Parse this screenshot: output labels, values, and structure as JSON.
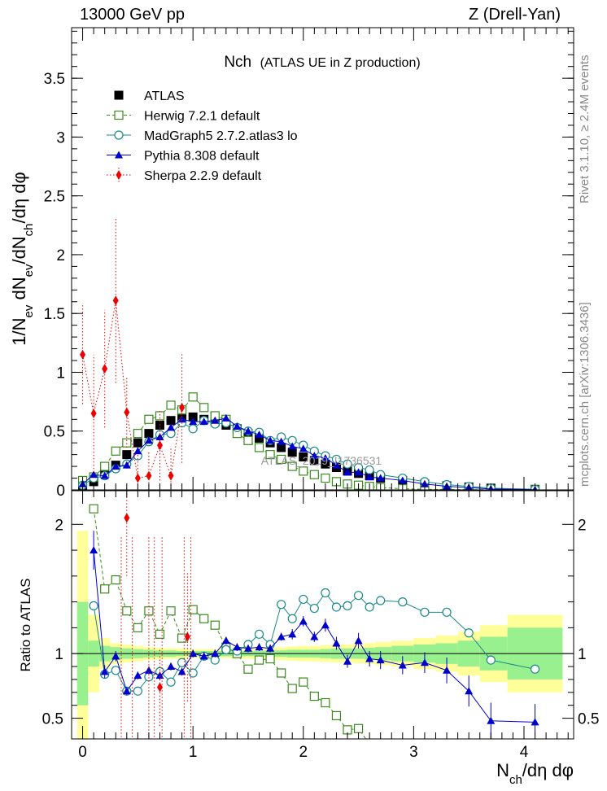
{
  "header": {
    "left": "13000 GeV pp",
    "right": "Z (Drell-Yan)"
  },
  "side_text": {
    "rivet": "Rivet 3.1.10, ≥ 2.4M events",
    "mcplots": "mcplots.cern.ch [arXiv:1306.3436]"
  },
  "watermark": "ATLAS_2019_I1736531",
  "chart_data": [
    {
      "type": "scatter",
      "title": "Nch",
      "subtitle": "(ATLAS UE in Z production)",
      "ylabel": "1/N_ev dN_ev/dN_ch/dη dφ",
      "xlabel": "",
      "xlim": [
        -0.1,
        4.45
      ],
      "ylim": [
        0,
        3.93
      ],
      "xticks": [
        0,
        1,
        2,
        3,
        4
      ],
      "yticks": [
        0.5,
        1,
        1.5,
        2,
        2.5,
        3,
        3.5
      ],
      "ytick_labels": [
        "0.5",
        "1",
        "1.5",
        "2",
        "2.5",
        "3",
        "3.5"
      ],
      "legend_position": "top-left",
      "series": [
        {
          "name": "ATLAS",
          "color": "#000000",
          "marker": "filled-square",
          "x": [
            0,
            0.1,
            0.2,
            0.3,
            0.4,
            0.5,
            0.6,
            0.7,
            0.8,
            0.9,
            1.0,
            1.1,
            1.2,
            1.3,
            1.4,
            1.5,
            1.6,
            1.7,
            1.8,
            1.9,
            2.0,
            2.1,
            2.2,
            2.3,
            2.4,
            2.5,
            2.6,
            2.7,
            2.9,
            3.1,
            3.3,
            3.5,
            3.7,
            4.1
          ],
          "y": [
            0.03,
            0.07,
            0.14,
            0.21,
            0.3,
            0.4,
            0.48,
            0.55,
            0.59,
            0.61,
            0.62,
            0.6,
            0.58,
            0.55,
            0.52,
            0.48,
            0.44,
            0.4,
            0.36,
            0.32,
            0.28,
            0.25,
            0.22,
            0.19,
            0.16,
            0.14,
            0.12,
            0.1,
            0.08,
            0.05,
            0.035,
            0.025,
            0.015,
            0.005
          ]
        },
        {
          "name": "Herwig 7.2.1 default",
          "color": "#3a8a1e",
          "marker": "open-square",
          "line": "dashed",
          "x": [
            0,
            0.1,
            0.2,
            0.3,
            0.4,
            0.5,
            0.6,
            0.7,
            0.8,
            0.9,
            1.0,
            1.1,
            1.2,
            1.3,
            1.4,
            1.5,
            1.6,
            1.7,
            1.8,
            1.9,
            2.0,
            2.1,
            2.2,
            2.3,
            2.4,
            2.5,
            2.6,
            2.7,
            2.9,
            3.1,
            3.3,
            3.5,
            3.7,
            4.1
          ],
          "y": [
            0.08,
            0.11,
            0.2,
            0.33,
            0.4,
            0.48,
            0.6,
            0.63,
            0.72,
            0.68,
            0.79,
            0.7,
            0.63,
            0.6,
            0.48,
            0.42,
            0.36,
            0.3,
            0.26,
            0.2,
            0.16,
            0.13,
            0.1,
            0.07,
            0.05,
            0.04,
            0.03,
            0.02,
            0.01,
            0.005,
            0.003,
            0.002,
            0.001,
            0.0005
          ]
        },
        {
          "name": "MadGraph5 2.7.2.atlas3 lo",
          "color": "#1a8a8a",
          "marker": "open-circle",
          "line": "solid",
          "x": [
            0,
            0.1,
            0.2,
            0.3,
            0.4,
            0.5,
            0.6,
            0.7,
            0.8,
            0.9,
            1.0,
            1.1,
            1.2,
            1.3,
            1.4,
            1.5,
            1.6,
            1.7,
            1.8,
            1.9,
            2.0,
            2.1,
            2.2,
            2.3,
            2.4,
            2.5,
            2.6,
            2.7,
            2.9,
            3.1,
            3.3,
            3.5,
            3.7,
            4.1
          ],
          "y": [
            0.04,
            0.1,
            0.12,
            0.18,
            0.22,
            0.29,
            0.41,
            0.47,
            0.48,
            0.57,
            0.52,
            0.59,
            0.56,
            0.57,
            0.53,
            0.5,
            0.49,
            0.42,
            0.45,
            0.42,
            0.38,
            0.33,
            0.29,
            0.26,
            0.22,
            0.19,
            0.17,
            0.13,
            0.1,
            0.07,
            0.045,
            0.03,
            0.015,
            0.005
          ]
        },
        {
          "name": "Pythia 8.308 default",
          "color": "#0000cc",
          "marker": "filled-triangle",
          "line": "solid",
          "x": [
            0,
            0.1,
            0.2,
            0.3,
            0.4,
            0.5,
            0.6,
            0.7,
            0.8,
            0.9,
            1.0,
            1.1,
            1.2,
            1.3,
            1.4,
            1.5,
            1.6,
            1.7,
            1.8,
            1.9,
            2.0,
            2.1,
            2.2,
            2.3,
            2.4,
            2.5,
            2.6,
            2.7,
            2.9,
            3.1,
            3.3,
            3.5,
            3.7,
            4.1
          ],
          "y": [
            0.05,
            0.13,
            0.12,
            0.2,
            0.21,
            0.33,
            0.42,
            0.45,
            0.53,
            0.6,
            0.58,
            0.58,
            0.59,
            0.61,
            0.54,
            0.5,
            0.47,
            0.42,
            0.41,
            0.37,
            0.35,
            0.29,
            0.27,
            0.21,
            0.15,
            0.15,
            0.11,
            0.1,
            0.08,
            0.05,
            0.03,
            0.02,
            0.008,
            0.002
          ]
        },
        {
          "name": "Sherpa 2.2.9 default",
          "color": "#ee0000",
          "marker": "filled-diamond",
          "line": "dotted",
          "x": [
            0,
            0.1,
            0.2,
            0.3,
            0.4,
            0.5,
            0.6,
            0.7,
            0.8,
            0.9
          ],
          "y": [
            1.15,
            0.65,
            1.03,
            1.61,
            0.66,
            0.1,
            0.12,
            0.38,
            0.12,
            0.7
          ],
          "err": [
            0.42,
            0.5,
            0.5,
            0.7,
            0.3,
            0.2,
            0.2,
            0.3,
            0.25,
            0.47
          ]
        }
      ]
    },
    {
      "type": "scatter",
      "title": "",
      "ylabel": "Ratio to ATLAS",
      "xlabel": "N_ch/dη dφ",
      "xlim": [
        -0.1,
        4.45
      ],
      "ylim": [
        0.34,
        2.26
      ],
      "xticks": [
        0,
        1,
        2,
        3,
        4
      ],
      "xtick_labels": [
        "0",
        "1",
        "2",
        "3",
        "4"
      ],
      "yticks": [
        0.5,
        1,
        2
      ],
      "ytick_labels": [
        "0.5",
        "1",
        "2"
      ],
      "band_edges_x": [
        -0.05,
        0.05,
        0.15,
        0.25,
        0.35,
        0.45,
        0.55,
        0.65,
        0.75,
        0.85,
        0.95,
        1.05,
        1.15,
        1.25,
        1.35,
        1.45,
        1.55,
        1.65,
        1.75,
        1.85,
        1.95,
        2.05,
        2.15,
        2.25,
        2.35,
        2.45,
        2.55,
        2.65,
        2.8,
        3.0,
        3.2,
        3.4,
        3.6,
        3.85,
        4.35
      ],
      "stat_band": [
        0.4,
        0.1,
        0.06,
        0.05,
        0.04,
        0.035,
        0.03,
        0.025,
        0.025,
        0.02,
        0.02,
        0.02,
        0.02,
        0.02,
        0.02,
        0.02,
        0.02,
        0.025,
        0.025,
        0.03,
        0.03,
        0.03,
        0.035,
        0.04,
        0.04,
        0.04,
        0.045,
        0.05,
        0.06,
        0.07,
        0.08,
        0.1,
        0.13,
        0.2
      ],
      "total_band": [
        0.95,
        0.3,
        0.12,
        0.08,
        0.07,
        0.06,
        0.05,
        0.045,
        0.04,
        0.04,
        0.035,
        0.035,
        0.035,
        0.035,
        0.04,
        0.04,
        0.04,
        0.045,
        0.05,
        0.055,
        0.06,
        0.06,
        0.065,
        0.07,
        0.07,
        0.075,
        0.08,
        0.09,
        0.1,
        0.12,
        0.14,
        0.17,
        0.22,
        0.3
      ],
      "series": [
        {
          "name": "Herwig 7.2.1 default",
          "color": "#3a8a1e",
          "x": [
            0.1,
            0.2,
            0.3,
            0.4,
            0.5,
            0.6,
            0.7,
            0.8,
            0.9,
            1.0,
            1.1,
            1.2,
            1.3,
            1.4,
            1.5,
            1.6,
            1.7,
            1.8,
            1.9,
            2.0,
            2.1,
            2.2,
            2.3,
            2.4,
            2.5,
            2.6
          ],
          "y": [
            2.12,
            1.5,
            1.57,
            1.33,
            1.2,
            1.33,
            1.15,
            1.33,
            1.12,
            1.34,
            1.27,
            1.22,
            1.05,
            1.0,
            0.88,
            0.95,
            0.96,
            0.85,
            0.73,
            0.78,
            0.67,
            0.62,
            0.52,
            0.41,
            0.42,
            0.3
          ]
        },
        {
          "name": "MadGraph5 2.7.2.atlas3 lo",
          "color": "#1a8a8a",
          "x": [
            0.1,
            0.2,
            0.3,
            0.4,
            0.5,
            0.6,
            0.7,
            0.8,
            0.9,
            1.0,
            1.1,
            1.2,
            1.3,
            1.4,
            1.5,
            1.6,
            1.7,
            1.8,
            1.9,
            2.0,
            2.1,
            2.2,
            2.3,
            2.4,
            2.5,
            2.6,
            2.7,
            2.9,
            3.1,
            3.3,
            3.5,
            3.7,
            4.1
          ],
          "y": [
            1.37,
            0.84,
            0.87,
            0.71,
            0.71,
            0.82,
            0.86,
            0.78,
            0.93,
            0.85,
            0.98,
            0.95,
            1.03,
            1.02,
            1.07,
            1.15,
            1.07,
            1.38,
            1.27,
            1.42,
            1.35,
            1.47,
            1.36,
            1.37,
            1.45,
            1.36,
            1.41,
            1.4,
            1.32,
            1.32,
            1.16,
            0.95,
            0.88
          ]
        },
        {
          "name": "Pythia 8.308 default",
          "color": "#0000cc",
          "x": [
            0.1,
            0.2,
            0.3,
            0.4,
            0.5,
            0.6,
            0.7,
            0.8,
            0.9,
            1.0,
            1.1,
            1.2,
            1.3,
            1.4,
            1.5,
            1.6,
            1.7,
            1.8,
            1.9,
            2.0,
            2.1,
            2.2,
            2.3,
            2.4,
            2.5,
            2.6,
            2.7,
            2.9,
            3.1,
            3.3,
            3.5,
            3.7,
            4.1
          ],
          "y": [
            1.8,
            0.86,
            0.98,
            0.71,
            0.83,
            0.87,
            0.83,
            0.9,
            0.86,
            1.0,
            0.98,
            1.0,
            1.1,
            1.05,
            1.04,
            1.05,
            1.04,
            1.13,
            1.15,
            1.25,
            1.13,
            1.22,
            1.08,
            0.94,
            1.1,
            0.96,
            0.95,
            0.91,
            0.93,
            0.87,
            0.71,
            0.48,
            0.47
          ],
          "err": [
            0.15,
            0.05,
            0.04,
            0.03,
            0.03,
            0.03,
            0.03,
            0.03,
            0.03,
            0.03,
            0.03,
            0.03,
            0.03,
            0.03,
            0.03,
            0.03,
            0.03,
            0.03,
            0.04,
            0.04,
            0.04,
            0.05,
            0.05,
            0.05,
            0.06,
            0.06,
            0.07,
            0.07,
            0.08,
            0.1,
            0.12,
            0.14,
            0.14
          ]
        },
        {
          "name": "Sherpa 2.2.9 default",
          "color": "#ee0000",
          "x": [
            0.4,
            0.7,
            0.95
          ],
          "y": [
            2.05,
            0.74,
            1.13
          ],
          "err": [
            0.45,
            0.3,
            0.5
          ]
        }
      ]
    }
  ]
}
